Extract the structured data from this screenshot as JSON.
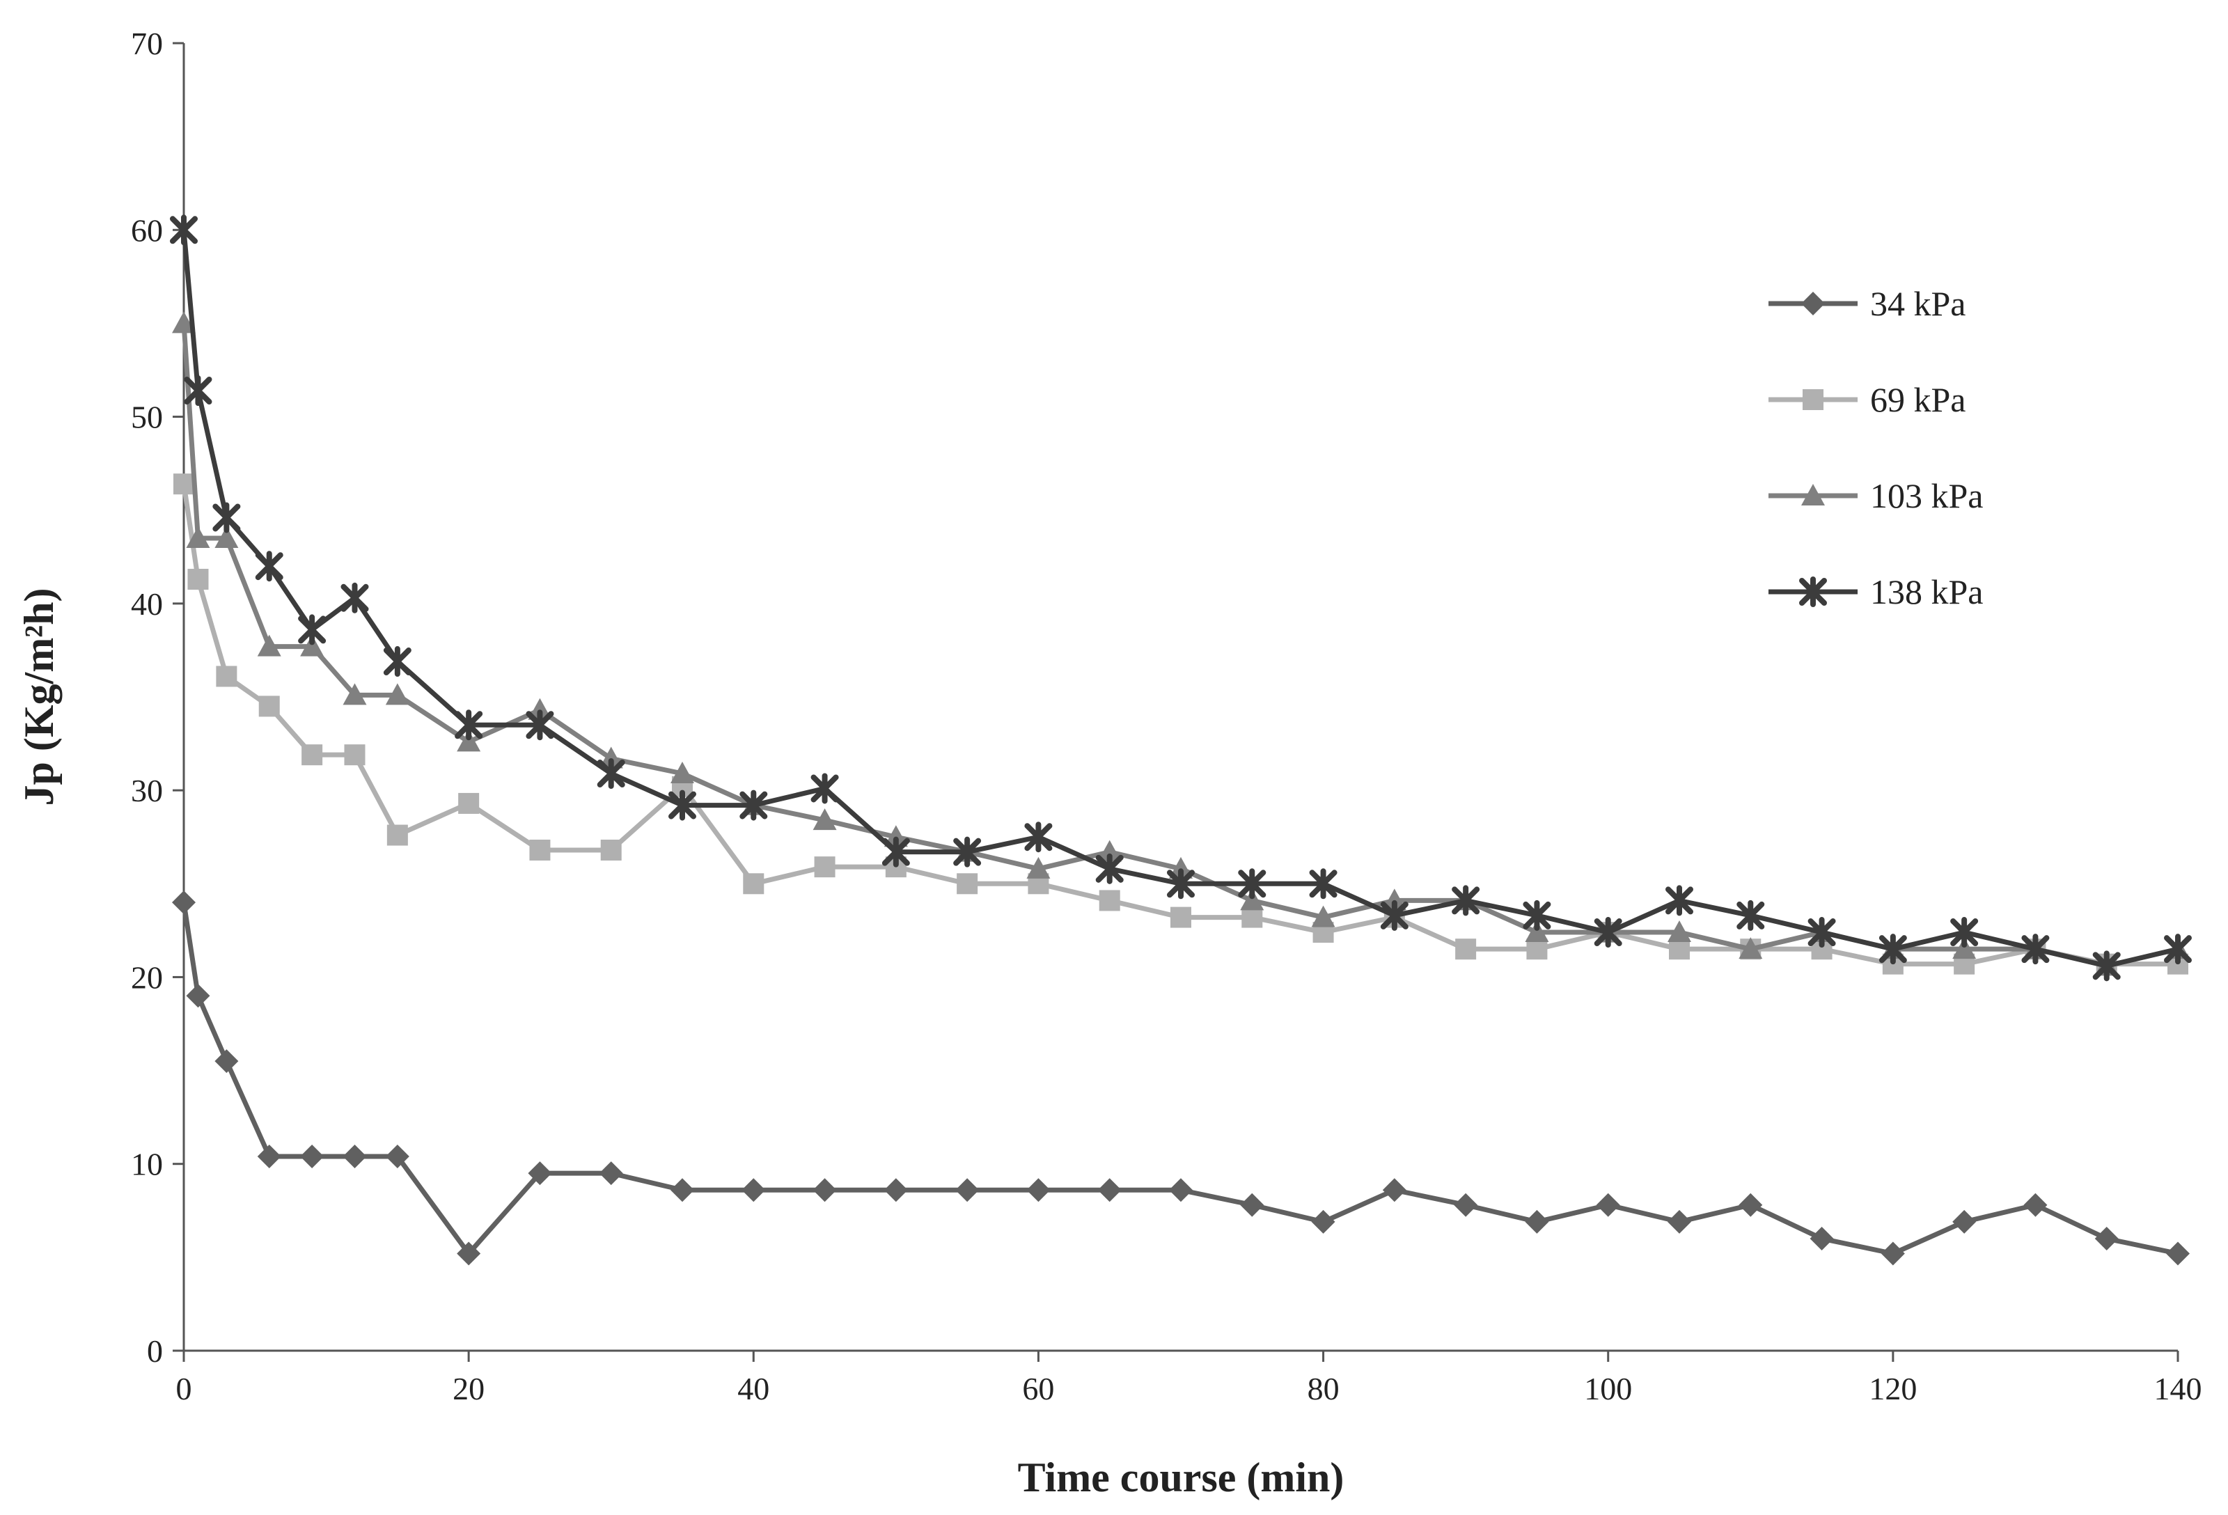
{
  "chart_data": {
    "type": "line",
    "title": "",
    "xlabel": "Time course (min)",
    "ylabel": "Jp (Kg/m²h)",
    "xlim": [
      0,
      140
    ],
    "ylim": [
      0,
      70
    ],
    "x_ticks": [
      0,
      20,
      40,
      60,
      80,
      100,
      120,
      140
    ],
    "y_ticks": [
      0,
      10,
      20,
      30,
      40,
      50,
      60,
      70
    ],
    "grid": false,
    "legend_position": "right",
    "x": [
      0,
      1,
      3,
      6,
      9,
      12,
      15,
      20,
      25,
      30,
      35,
      40,
      45,
      50,
      55,
      60,
      65,
      70,
      75,
      80,
      85,
      90,
      95,
      100,
      105,
      110,
      115,
      120,
      125,
      130,
      135,
      140
    ],
    "series": [
      {
        "name": "34 kPa",
        "color": "#606060",
        "marker": "diamond",
        "values": [
          24.0,
          19.0,
          15.5,
          10.4,
          10.4,
          10.4,
          10.4,
          5.2,
          9.5,
          9.5,
          8.6,
          8.6,
          8.6,
          8.6,
          8.6,
          8.6,
          8.6,
          8.6,
          7.8,
          6.9,
          8.6,
          7.8,
          6.9,
          7.8,
          6.9,
          7.8,
          6.0,
          5.2,
          6.9,
          7.8,
          6.0,
          5.2
        ]
      },
      {
        "name": "69 kPa",
        "color": "#b0b0b0",
        "marker": "square",
        "values": [
          46.4,
          41.3,
          36.1,
          34.5,
          31.9,
          31.9,
          27.6,
          29.3,
          26.8,
          26.8,
          30.2,
          25.0,
          25.9,
          25.9,
          25.0,
          25.0,
          24.1,
          23.2,
          23.2,
          22.4,
          23.2,
          21.5,
          21.5,
          22.4,
          21.5,
          21.5,
          21.5,
          20.7,
          20.7,
          21.5,
          20.7,
          20.7
        ]
      },
      {
        "name": "103 kPa",
        "color": "#808080",
        "marker": "triangle",
        "values": [
          55.0,
          43.5,
          43.5,
          37.7,
          37.7,
          35.1,
          35.1,
          32.6,
          34.3,
          31.7,
          30.9,
          29.2,
          28.4,
          27.5,
          26.7,
          25.8,
          26.7,
          25.8,
          24.1,
          23.2,
          24.1,
          24.1,
          22.4,
          22.4,
          22.4,
          21.5,
          22.4,
          21.5,
          21.5,
          21.5,
          20.6,
          21.5
        ]
      },
      {
        "name": "138 kPa",
        "color": "#3c3c3c",
        "marker": "star",
        "values": [
          60.0,
          51.4,
          44.6,
          42.0,
          38.6,
          40.3,
          36.9,
          33.5,
          33.5,
          30.9,
          29.2,
          29.2,
          30.1,
          26.7,
          26.7,
          27.5,
          25.8,
          25.0,
          25.0,
          25.0,
          23.3,
          24.1,
          23.3,
          22.4,
          24.1,
          23.3,
          22.4,
          21.5,
          22.4,
          21.5,
          20.6,
          21.5
        ]
      }
    ]
  }
}
